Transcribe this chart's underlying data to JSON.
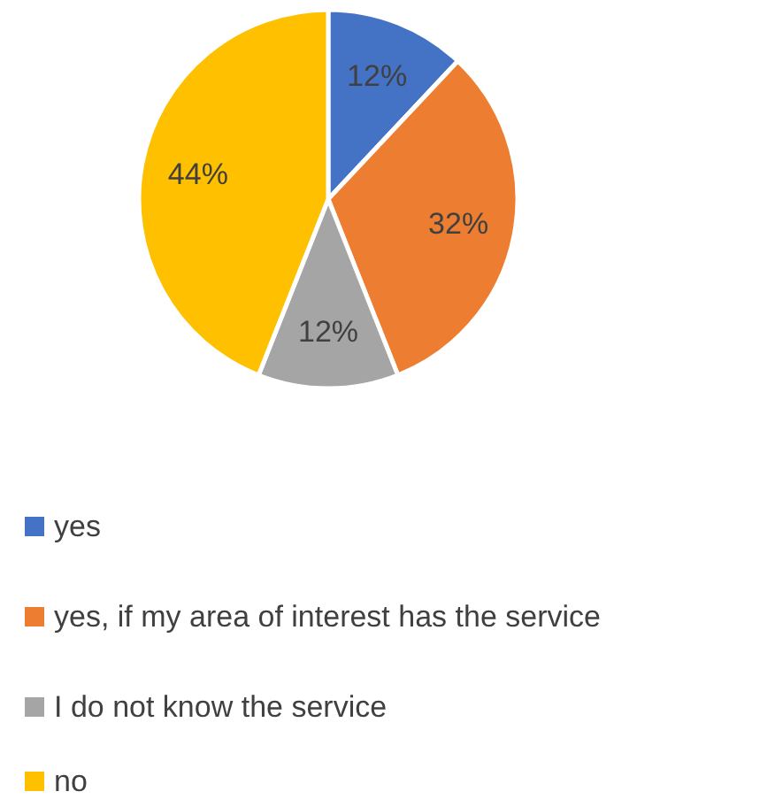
{
  "chart_data": {
    "type": "pie",
    "categories": [
      "yes",
      "yes, if my area of interest has the service",
      "I do not know the service",
      "no"
    ],
    "values": [
      12,
      32,
      12,
      44
    ],
    "colors": [
      "#4472c4",
      "#ed7d31",
      "#a5a5a5",
      "#ffc000"
    ],
    "value_labels": [
      "12%",
      "32%",
      "12%",
      "44%"
    ],
    "legend": "bottom"
  }
}
